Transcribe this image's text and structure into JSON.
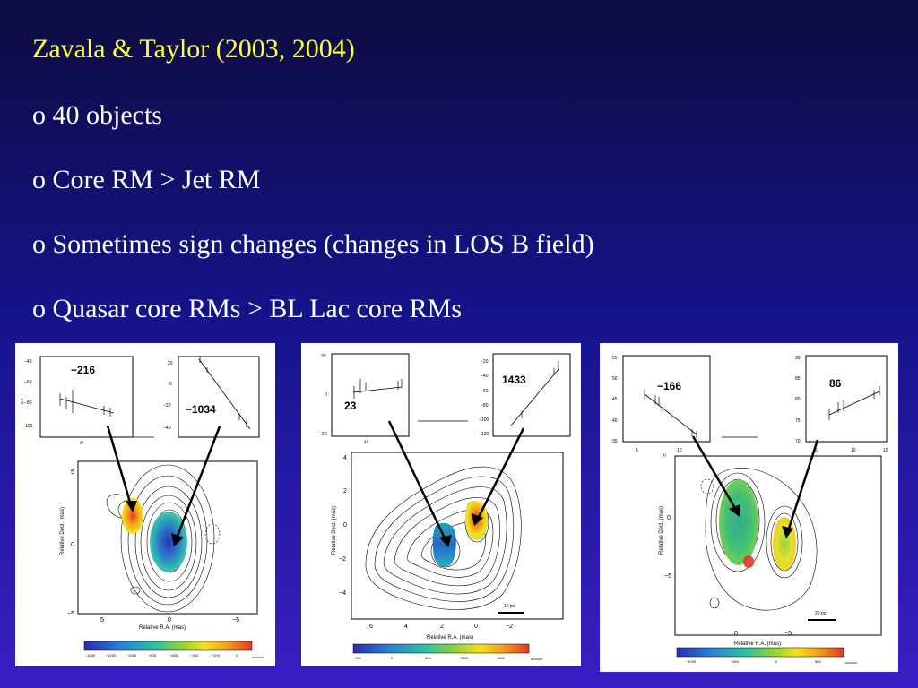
{
  "slide": {
    "title": "Zavala & Taylor (2003, 2004)",
    "bullets": [
      "o 40 objects",
      "o Core RM > Jet RM",
      "o Sometimes sign changes (changes in LOS B field)",
      "o Quasar core RMs > BL Lac core RMs"
    ]
  },
  "panels": [
    {
      "left_rm": "−216",
      "right_rm": "−1034",
      "left_y_ticks": [
        "−40",
        "−60",
        "−80",
        "−100"
      ],
      "right_y_ticks": [
        "20",
        "0",
        "−20",
        "−40"
      ],
      "x_ticks": [
        "5",
        "0",
        "−5"
      ],
      "y_ticks": [
        "5",
        "0",
        "−5"
      ],
      "x_label": "Relative R.A. (mas)",
      "y_label": "Relative Decl. (mas)",
      "colorbar_ticks": [
        "−1400",
        "−1200",
        "−1000",
        "−800",
        "−600",
        "−400",
        "−200",
        "0"
      ],
      "colorbar_unit": "RAD/M/M",
      "inset_xlabel": "λ²",
      "inset_ylabel": "χ"
    },
    {
      "left_rm": "23",
      "right_rm": "1433",
      "left_y_ticks": [
        "20",
        "0",
        "−20"
      ],
      "right_y_ticks": [
        "−20",
        "−40",
        "−60",
        "−80",
        "−100",
        "−120"
      ],
      "x_ticks": [
        "6",
        "4",
        "2",
        "0",
        "−2"
      ],
      "y_ticks": [
        "4",
        "2",
        "0",
        "−2",
        "−4"
      ],
      "x_label": "Relative R.A. (mas)",
      "y_label": "Relative Decl. (mas)",
      "scale_bar": "10 pc",
      "colorbar_ticks": [
        "−500",
        "0",
        "500",
        "1000",
        "1500"
      ],
      "colorbar_unit": "RAD/M/M",
      "inset_xlabel": "λ²",
      "inset_ylabel": "χ"
    },
    {
      "left_rm": "−166",
      "right_rm": "86",
      "left_y_ticks": [
        "55",
        "50",
        "45",
        "40",
        "35"
      ],
      "right_y_ticks": [
        "90",
        "85",
        "80",
        "75",
        "70"
      ],
      "x_ticks": [
        "0",
        "−5"
      ],
      "y_ticks": [
        "0",
        "−5"
      ],
      "x_label": "Relative R.A. (mas)",
      "y_label": "Relative Decl. (mas)",
      "scale_bar": "20 pc",
      "colorbar_ticks": [
        "−1000",
        "−500",
        "0",
        "500"
      ],
      "colorbar_unit": "RAD/M/M",
      "inset_xlabel": "λ²",
      "inset_ylabel": "χ",
      "inset_x_ticks": [
        "5",
        "10",
        "15"
      ]
    }
  ],
  "colors": {
    "background_top": "#0c0c40",
    "background_bottom": "#3a1fc4",
    "title": "#ffff33",
    "text": "#ffffff"
  }
}
